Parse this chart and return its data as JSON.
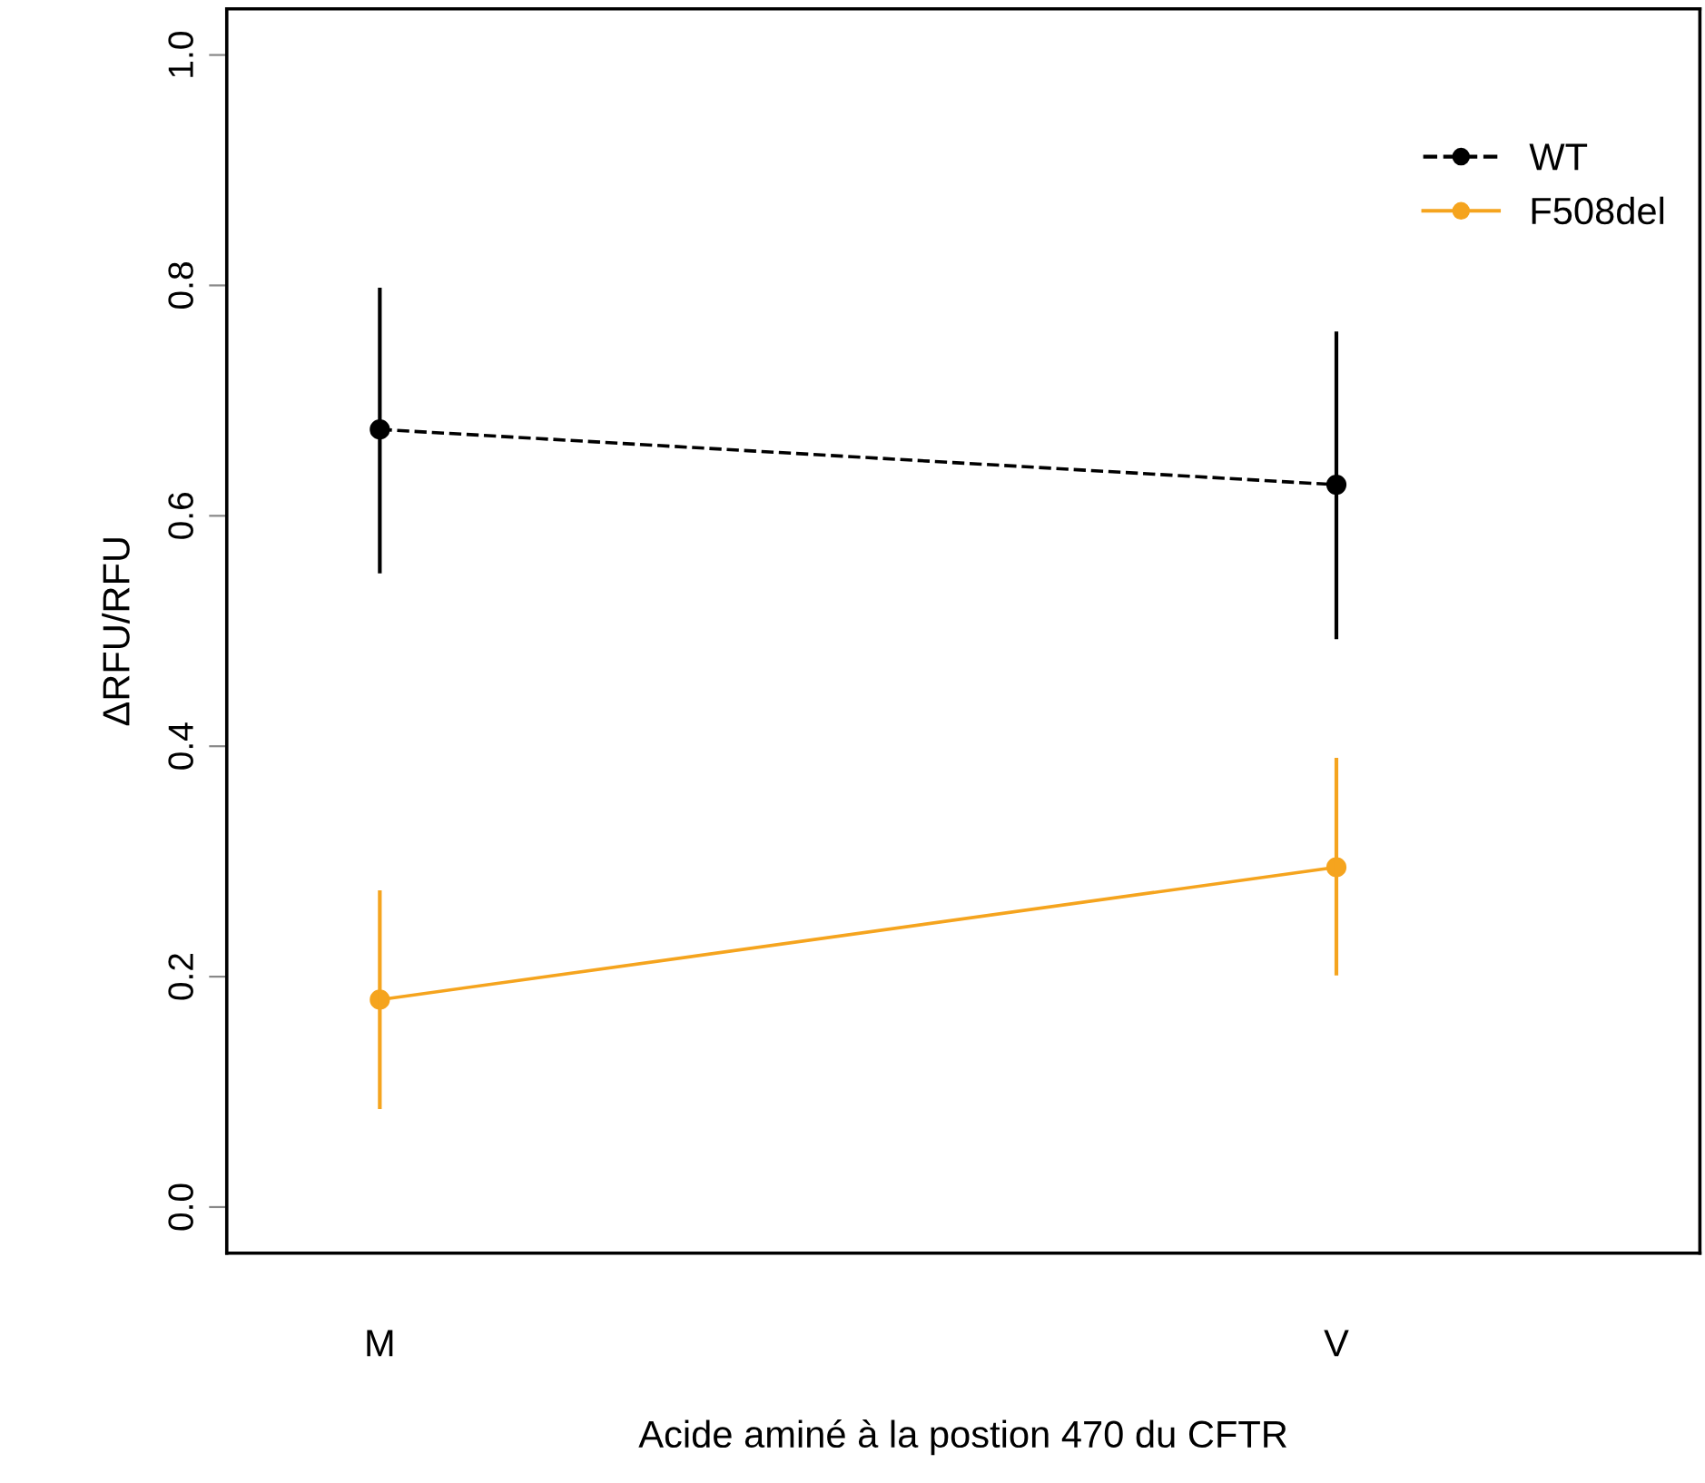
{
  "chart_data": {
    "type": "line",
    "xlabel": "Acide aminé à la postion 470 du CFTR",
    "ylabel": "ΔRFU/RFU",
    "categories": [
      "M",
      "V"
    ],
    "series": [
      {
        "name": "WT",
        "color": "#000000",
        "line_style": "dashed",
        "values": [
          0.675,
          0.627
        ],
        "errors": [
          [
            0.55,
            0.798
          ],
          [
            0.493,
            0.76
          ]
        ]
      },
      {
        "name": "F508del",
        "color": "#f5a41e",
        "line_style": "solid",
        "values": [
          0.18,
          0.295
        ],
        "errors": [
          [
            0.085,
            0.275
          ],
          [
            0.201,
            0.39
          ]
        ]
      }
    ],
    "ylim": [
      -0.04,
      1.04
    ],
    "yticks": [
      {
        "value": 0,
        "label": "0.0"
      },
      0.2,
      0.4,
      0.6,
      0.8,
      {
        "value": 1,
        "label": "1.0"
      }
    ],
    "marker": "circle",
    "legend": "top right",
    "grid": false
  }
}
